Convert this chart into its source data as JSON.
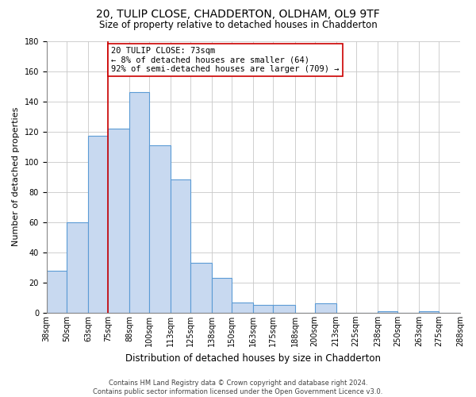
{
  "title1": "20, TULIP CLOSE, CHADDERTON, OLDHAM, OL9 9TF",
  "title2": "Size of property relative to detached houses in Chadderton",
  "xlabel": "Distribution of detached houses by size in Chadderton",
  "ylabel": "Number of detached properties",
  "footer1": "Contains HM Land Registry data © Crown copyright and database right 2024.",
  "footer2": "Contains public sector information licensed under the Open Government Licence v3.0.",
  "bin_labels": [
    "38sqm",
    "50sqm",
    "63sqm",
    "75sqm",
    "88sqm",
    "100sqm",
    "113sqm",
    "125sqm",
    "138sqm",
    "150sqm",
    "163sqm",
    "175sqm",
    "188sqm",
    "200sqm",
    "213sqm",
    "225sqm",
    "238sqm",
    "250sqm",
    "263sqm",
    "275sqm",
    "288sqm"
  ],
  "bin_edges": [
    38,
    50,
    63,
    75,
    88,
    100,
    113,
    125,
    138,
    150,
    163,
    175,
    188,
    200,
    213,
    225,
    238,
    250,
    263,
    275,
    288
  ],
  "bar_values": [
    28,
    60,
    117,
    122,
    146,
    111,
    88,
    33,
    23,
    7,
    5,
    5,
    0,
    6,
    0,
    0,
    1,
    0,
    1,
    0
  ],
  "bar_color": "#c8d9f0",
  "bar_edge_color": "#5b9bd5",
  "ylim": [
    0,
    180
  ],
  "yticks": [
    0,
    20,
    40,
    60,
    80,
    100,
    120,
    140,
    160,
    180
  ],
  "property_line_x": 75,
  "property_line_color": "#cc0000",
  "annotation_line1": "20 TULIP CLOSE: 73sqm",
  "annotation_line2": "← 8% of detached houses are smaller (64)",
  "annotation_line3": "92% of semi-detached houses are larger (709) →",
  "annotation_box_color": "#cc0000",
  "background_color": "#ffffff",
  "grid_color": "#c8c8c8",
  "title1_fontsize": 10,
  "title2_fontsize": 8.5,
  "ylabel_fontsize": 8,
  "xlabel_fontsize": 8.5,
  "footer_fontsize": 6,
  "tick_fontsize": 7,
  "annot_fontsize": 7.5
}
